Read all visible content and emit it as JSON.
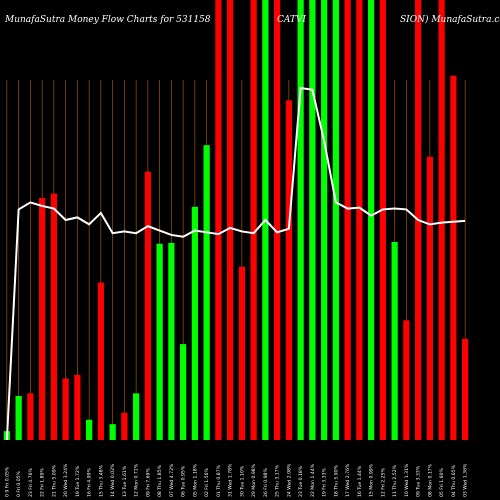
{
  "chart_data": {
    "type": "bar",
    "title_left": "MunafaSutra  Money Flow  Charts for 531158",
    "title_right": "SION) MunafaSutra.com",
    "title_mid": "CATVI",
    "categories": [
      "0 9 Fri 0.05%",
      "0 Fri 0.05%",
      "23 Fri 4.76%",
      "22 Fri 1.89%",
      "21 Thu 5.09%",
      "20 Wed 3.24%",
      "19 Tue 1.72%",
      "16 Fri 4.99%",
      "15 Thu 3.48%",
      "14 Wed 0.02%",
      "13 Tue 1.61%",
      "12 Mon 0.71%",
      "09 Fri 7.69%",
      "08 Thu 1.85%",
      "07 Wed 4.72%",
      "06 Tue 0.95%",
      "05 Mon 1.18%",
      "02 Fri 1.56%",
      "01 Thu 0.87%",
      "31 Wed 1.78%",
      "30 Tue 1.10%",
      "29 Mon 0.98%",
      "26 Fri 0.98%",
      "25 Thu 3.17%",
      "24 Wed 2.08%",
      "23 Tue 0.18%",
      "22 Mon 1.44%",
      "19 Fri 3.33%",
      "18 Thu 5.90%",
      "17 Wed 2.76%",
      "16 Tue 1.44%",
      "15 Mon 0.99%",
      "12 Fri 2.25%",
      "11 Thu 2.52%",
      "10 Wed 1.31%",
      "09 Tue 3.33%",
      "08 Mon 0.17%",
      "05 Fri 1.60%",
      "04 Thu 0.65%",
      "03 Wed 1.36%"
    ],
    "bars": [
      {
        "value": 10,
        "color": "green"
      },
      {
        "value": 50,
        "color": "green"
      },
      {
        "value": 53,
        "color": "red"
      },
      {
        "value": 275,
        "color": "red"
      },
      {
        "value": 280,
        "color": "red"
      },
      {
        "value": 70,
        "color": "red"
      },
      {
        "value": 74,
        "color": "red"
      },
      {
        "value": 23,
        "color": "green"
      },
      {
        "value": 179,
        "color": "red"
      },
      {
        "value": 18,
        "color": "green"
      },
      {
        "value": 31,
        "color": "red"
      },
      {
        "value": 53,
        "color": "green"
      },
      {
        "value": 305,
        "color": "red"
      },
      {
        "value": 223,
        "color": "green"
      },
      {
        "value": 224,
        "color": "green"
      },
      {
        "value": 109,
        "color": "green"
      },
      {
        "value": 265,
        "color": "green"
      },
      {
        "value": 335,
        "color": "green"
      },
      {
        "value": 500,
        "color": "red"
      },
      {
        "value": 500,
        "color": "red"
      },
      {
        "value": 197,
        "color": "red"
      },
      {
        "value": 500,
        "color": "red"
      },
      {
        "value": 500,
        "color": "green"
      },
      {
        "value": 500,
        "color": "red"
      },
      {
        "value": 386,
        "color": "red"
      },
      {
        "value": 500,
        "color": "green"
      },
      {
        "value": 500,
        "color": "green"
      },
      {
        "value": 500,
        "color": "green"
      },
      {
        "value": 500,
        "color": "green"
      },
      {
        "value": 500,
        "color": "red"
      },
      {
        "value": 500,
        "color": "red"
      },
      {
        "value": 500,
        "color": "green"
      },
      {
        "value": 500,
        "color": "red"
      },
      {
        "value": 225,
        "color": "green"
      },
      {
        "value": 136,
        "color": "red"
      },
      {
        "value": 500,
        "color": "red"
      },
      {
        "value": 322,
        "color": "red"
      },
      {
        "value": 500,
        "color": "red"
      },
      {
        "value": 414,
        "color": "red"
      },
      {
        "value": 115,
        "color": "red"
      }
    ],
    "line": [
      0,
      262,
      270,
      266,
      263,
      250,
      253,
      245,
      258,
      235,
      237,
      235,
      243,
      238,
      233,
      231,
      238,
      236,
      234,
      241,
      237,
      235,
      250,
      236,
      240,
      400,
      398,
      340,
      270,
      263,
      264,
      255,
      262,
      263,
      262,
      250,
      245,
      247,
      248,
      249
    ],
    "ylim": [
      0,
      500
    ],
    "grid": true,
    "colors": {
      "background": "#000000",
      "grid": "#b86a00",
      "bar_green": "#00ff00",
      "bar_red": "#ff0000",
      "line": "#ffffff",
      "text": "#ffffff"
    }
  }
}
